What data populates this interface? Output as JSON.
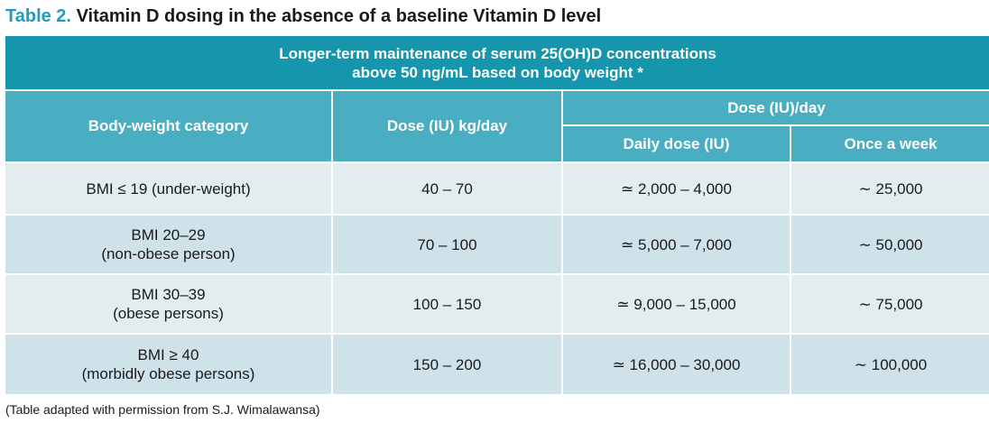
{
  "title": {
    "label": "Table 2.",
    "text": "Vitamin D dosing in the absence of a baseline Vitamin D level"
  },
  "table": {
    "banner_line1": "Longer-term maintenance of serum 25(OH)D concentrations",
    "banner_line2": "above 50 ng/mL based on body weight *",
    "headers": {
      "body_weight": "Body-weight category",
      "dose_kg": "Dose (IU) kg/day",
      "dose_day": "Dose (IU)/day",
      "daily_dose": "Daily dose (IU)",
      "once_week": "Once a week"
    },
    "rows": [
      {
        "category_line1": "BMI ≤ 19 (under-weight)",
        "category_line2": "",
        "dose_kg": "40 – 70",
        "daily_dose": "≃ 2,000 – 4,000",
        "weekly": "∼ 25,000"
      },
      {
        "category_line1": "BMI 20–29",
        "category_line2": "(non-obese person)",
        "dose_kg": "70 – 100",
        "daily_dose": "≃ 5,000 – 7,000",
        "weekly": "∼ 50,000"
      },
      {
        "category_line1": "BMI 30–39",
        "category_line2": "(obese persons)",
        "dose_kg": "100 – 150",
        "daily_dose": "≃ 9,000 – 15,000",
        "weekly": "∼ 75,000"
      },
      {
        "category_line1": "BMI ≥ 40",
        "category_line2": "(morbidly obese persons)",
        "dose_kg": "150 – 200",
        "daily_dose": "≃ 16,000 – 30,000",
        "weekly": "∼ 100,000"
      }
    ]
  },
  "footnote": "(Table adapted with permission from S.J. Wimalawansa)",
  "colors": {
    "title_label": "#1f9cc0",
    "banner": "#1596ac",
    "header": "#4aaec3",
    "row_light": "#e3edf0",
    "row_dark": "#cfe2e9"
  }
}
